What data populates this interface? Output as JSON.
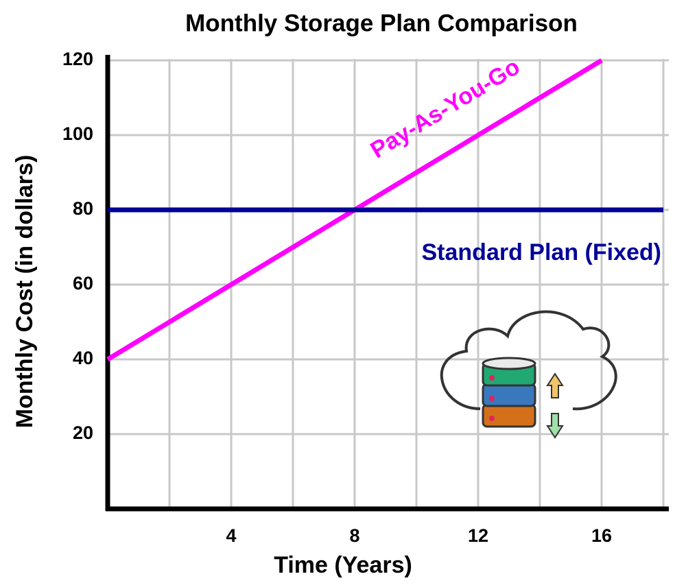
{
  "chart_data": {
    "type": "line",
    "title": "Monthly Storage Plan Comparison",
    "x_label": "Time (Years)",
    "y_label": "Monthly Cost (in dollars)",
    "xlim": [
      0,
      18
    ],
    "xticks": [
      4,
      8,
      12,
      16
    ],
    "xminor": [
      2,
      6,
      10,
      14,
      18
    ],
    "ylim": [
      0,
      120
    ],
    "yticks": [
      20,
      40,
      60,
      80,
      100,
      120
    ],
    "grid": true,
    "series": [
      {
        "name": "Pay-As-You-Go",
        "color": "#ff00ff",
        "x": [
          0,
          16
        ],
        "values": [
          40,
          120
        ]
      },
      {
        "name": "Standard Plan (Fixed)",
        "color": "#000099",
        "x": [
          0,
          18
        ],
        "values": [
          80,
          80
        ]
      }
    ]
  }
}
